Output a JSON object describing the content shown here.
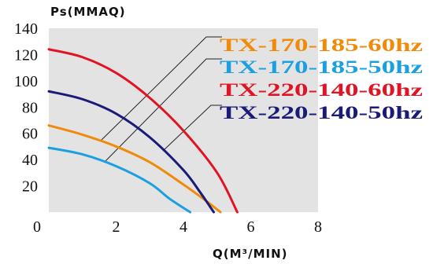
{
  "chart_data": {
    "type": "line",
    "title": "",
    "ylabel": "Ps(MMAQ)",
    "xlabel": "Q(M³/MIN)",
    "xlim": [
      0,
      8
    ],
    "ylim": [
      0,
      140
    ],
    "x_ticks": [
      {
        "value": 0,
        "label": "0"
      },
      {
        "value": 2,
        "label": "2"
      },
      {
        "value": 4,
        "label": "4"
      },
      {
        "value": 6,
        "label": "6"
      },
      {
        "value": 8,
        "label": "8"
      }
    ],
    "y_ticks": [
      {
        "value": 0,
        "label": ""
      },
      {
        "value": 20,
        "label": "20"
      },
      {
        "value": 40,
        "label": "40"
      },
      {
        "value": 60,
        "label": "60"
      },
      {
        "value": 80,
        "label": "80"
      },
      {
        "value": 100,
        "label": "100"
      },
      {
        "value": 120,
        "label": "120"
      },
      {
        "value": 140,
        "label": "140"
      }
    ],
    "grid": false,
    "plot_background": "#e3e3e3",
    "legend_position": "top-right",
    "series": [
      {
        "name": "TX-170-185-60hz",
        "color": "#f08a0a",
        "x": [
          0,
          1,
          2,
          3,
          4,
          4.6,
          5.1
        ],
        "y": [
          66,
          59,
          50,
          38,
          21,
          10,
          0
        ]
      },
      {
        "name": "TX-170-185-50hz",
        "color": "#1aa0e0",
        "x": [
          0,
          1,
          2,
          3,
          3.6,
          4.2
        ],
        "y": [
          49,
          44,
          35,
          22,
          10,
          0
        ]
      },
      {
        "name": "TX-220-140-60hz",
        "color": "#e01424",
        "x": [
          0,
          1,
          2,
          3,
          4,
          5,
          5.6
        ],
        "y": [
          124,
          118,
          106,
          87,
          62,
          30,
          0
        ]
      },
      {
        "name": "TX-220-140-50hz",
        "color": "#1a1a78",
        "x": [
          0,
          1,
          2,
          3,
          4,
          4.5,
          4.9
        ],
        "y": [
          92,
          86,
          75,
          57,
          32,
          15,
          0
        ]
      }
    ]
  }
}
